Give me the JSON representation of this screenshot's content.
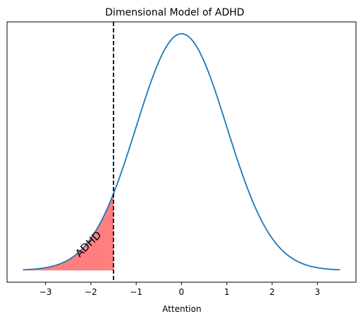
{
  "chart_data": {
    "type": "line",
    "title": "Dimensional Model of ADHD",
    "xlabel": "Attention",
    "ylabel": "",
    "xlim": [
      -3.85,
      3.85
    ],
    "ylim": [
      -0.02,
      0.419
    ],
    "x_ticks": [
      -3,
      -2,
      -1,
      0,
      1,
      2,
      3
    ],
    "x_tick_labels": [
      "−3",
      "−2",
      "−1",
      "0",
      "1",
      "2",
      "3"
    ],
    "y_ticks_visible": false,
    "grid": false,
    "series": [
      {
        "kind": "normal-pdf",
        "mean": 0,
        "sd": 1,
        "x_range": [
          -3.5,
          3.5
        ],
        "color": "#1f77b4"
      }
    ],
    "shaded_region": {
      "x_range": [
        -3.5,
        -1.5
      ],
      "color": "#ff7f7f"
    },
    "threshold_line": {
      "x": -1.5,
      "style": "dashed",
      "color": "#000000"
    },
    "annotation": {
      "text": "ADHD",
      "x": -2.0,
      "y": 0.04,
      "rotation_deg": 45
    }
  }
}
